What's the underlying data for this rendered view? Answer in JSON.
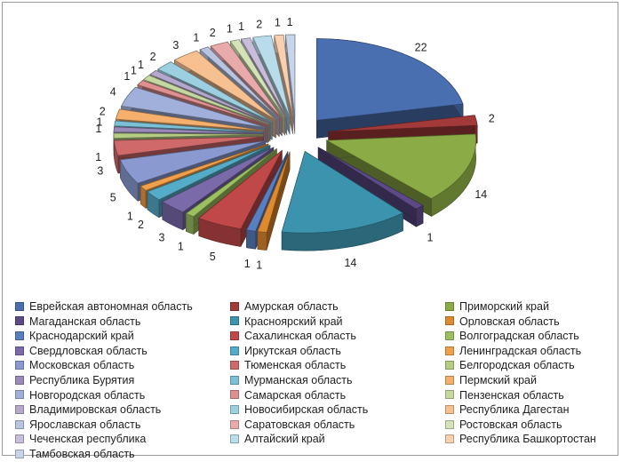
{
  "chart_data": {
    "type": "pie",
    "title": "",
    "categories": [
      "Еврейская автономная область",
      "Амурская область",
      "Приморский край",
      "Магаданская область",
      "Красноярский край",
      "Орловская область",
      "Краснодарский край",
      "Сахалинская область",
      "Волгоградская область",
      "Свердловская область",
      "Иркутская область",
      "Ленинградская область",
      "Московская область",
      "Тюменская область",
      "Белгородская область",
      "Республика Бурятия",
      "Мурманская область",
      "Пермский край",
      "Новгородская область",
      "Самарская область",
      "Пензенская область",
      "Владимировская область",
      "Новосибирская область",
      "Республика Дагестан",
      "Ярославская область",
      "Саратовская область",
      "Ростовская область",
      "Чеченская республика",
      "Алтайский край",
      "Республика Башкортостан",
      "Тамбовская область"
    ],
    "values": [
      22,
      2,
      14,
      1,
      14,
      1,
      1,
      5,
      1,
      3,
      2,
      1,
      5,
      3,
      1,
      1,
      1,
      2,
      4,
      1,
      1,
      1,
      2,
      3,
      1,
      2,
      1,
      1,
      2,
      1,
      1
    ],
    "data_labels": [
      "22",
      "2",
      "14",
      "1",
      "14",
      "1",
      "1",
      "5",
      "1",
      "3",
      "2",
      "1",
      "5",
      "3",
      "1",
      "1",
      "1",
      "2",
      "4",
      "1",
      "1",
      "1",
      "2",
      "3",
      "1",
      "2",
      "1",
      "1",
      "2",
      "1",
      "1"
    ],
    "colors": [
      "#4a6fb0",
      "#a33a3a",
      "#8aab45",
      "#5c4a86",
      "#3b93ad",
      "#e08a2f",
      "#5a7fc0",
      "#c04848",
      "#9cc060",
      "#7a6aaa",
      "#55acc8",
      "#f0a04a",
      "#8a9ad0",
      "#d06a6a",
      "#b4cc84",
      "#9a8abc",
      "#7cc0d8",
      "#f4b06c",
      "#a0b0da",
      "#e09090",
      "#c4d8a0",
      "#b4a8cc",
      "#9cd0e0",
      "#f6c090",
      "#b8c4e2",
      "#e8aaaa",
      "#d4e2b8",
      "#c8bedc",
      "#b8dcea",
      "#f8d0b0",
      "#c8d4ea"
    ],
    "legend_position": "bottom"
  }
}
